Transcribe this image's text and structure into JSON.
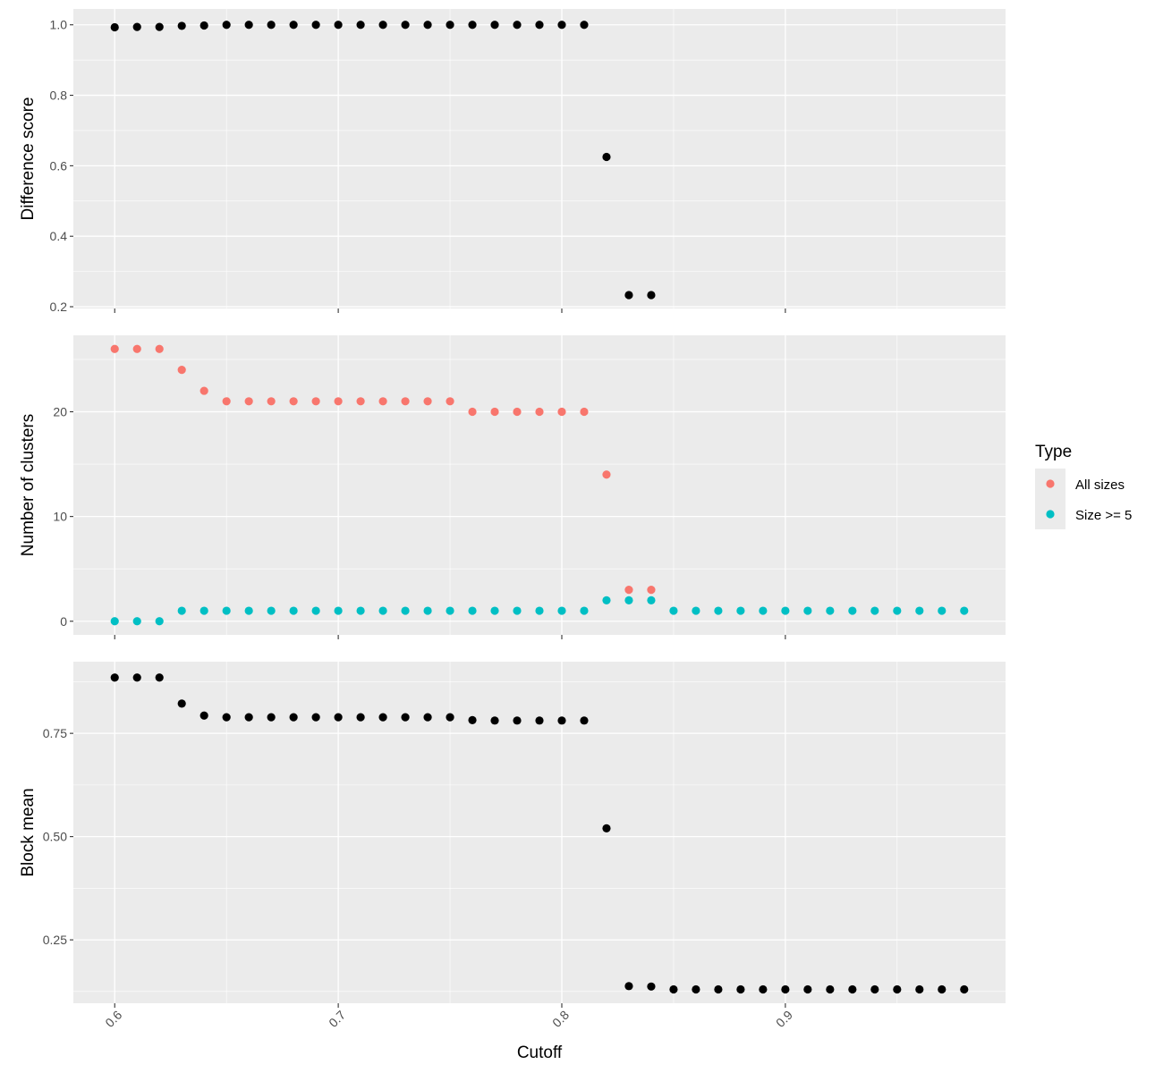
{
  "chart_data": {
    "type": "scatter",
    "xlabel": "Cutoff",
    "x_ticks": [
      "0.6",
      "0.7",
      "0.8",
      "0.9"
    ],
    "xlim": [
      0.5815,
      0.9985
    ],
    "colors": {
      "panel_bg": "#ebebeb",
      "grid": "#ffffff",
      "all_sizes": "#f8766d",
      "size_ge_5": "#00bfc4",
      "single": "#000000"
    },
    "legend": {
      "title": "Type",
      "position": "right",
      "entries": [
        {
          "label": "All sizes",
          "color": "#f8766d"
        },
        {
          "label": "Size >= 5",
          "color": "#00bfc4"
        }
      ]
    },
    "panels": [
      {
        "ylabel": "Difference score",
        "ylim": [
          0.195,
          1.045
        ],
        "y_ticks": [
          "0.2",
          "0.4",
          "0.6",
          "0.8",
          "1.0"
        ],
        "series": [
          {
            "color": "#000000",
            "x": [
              0.6,
              0.61,
              0.62,
              0.63,
              0.64,
              0.65,
              0.66,
              0.67,
              0.68,
              0.69,
              0.7,
              0.71,
              0.72,
              0.73,
              0.74,
              0.75,
              0.76,
              0.77,
              0.78,
              0.79,
              0.8,
              0.81,
              0.82,
              0.83,
              0.84
            ],
            "y": [
              0.993,
              0.994,
              0.994,
              0.997,
              0.998,
              1.0,
              1.0,
              1.0,
              1.0,
              1.0,
              1.0,
              1.0,
              1.0,
              1.0,
              1.0,
              1.0,
              1.0,
              1.0,
              1.0,
              1.0,
              1.0,
              1.0,
              0.625,
              0.233,
              0.233
            ]
          }
        ]
      },
      {
        "ylabel": "Number of clusters",
        "ylim": [
          -1.3,
          27.3
        ],
        "y_ticks": [
          "0",
          "10",
          "20"
        ],
        "series": [
          {
            "name": "All sizes",
            "color": "#f8766d",
            "x": [
              0.6,
              0.61,
              0.62,
              0.63,
              0.64,
              0.65,
              0.66,
              0.67,
              0.68,
              0.69,
              0.7,
              0.71,
              0.72,
              0.73,
              0.74,
              0.75,
              0.76,
              0.77,
              0.78,
              0.79,
              0.8,
              0.81,
              0.82,
              0.83,
              0.84
            ],
            "y": [
              26,
              26,
              26,
              24,
              22,
              21,
              21,
              21,
              21,
              21,
              21,
              21,
              21,
              21,
              21,
              21,
              20,
              20,
              20,
              20,
              20,
              20,
              14,
              3,
              3
            ]
          },
          {
            "name": "Size >= 5",
            "color": "#00bfc4",
            "x": [
              0.6,
              0.61,
              0.62,
              0.63,
              0.64,
              0.65,
              0.66,
              0.67,
              0.68,
              0.69,
              0.7,
              0.71,
              0.72,
              0.73,
              0.74,
              0.75,
              0.76,
              0.77,
              0.78,
              0.79,
              0.8,
              0.81,
              0.82,
              0.83,
              0.84,
              0.85,
              0.86,
              0.87,
              0.88,
              0.89,
              0.9,
              0.91,
              0.92,
              0.93,
              0.94,
              0.95,
              0.96,
              0.97,
              0.98
            ],
            "y": [
              0,
              0,
              0,
              1,
              1,
              1,
              1,
              1,
              1,
              1,
              1,
              1,
              1,
              1,
              1,
              1,
              1,
              1,
              1,
              1,
              1,
              1,
              2,
              2,
              2,
              1,
              1,
              1,
              1,
              1,
              1,
              1,
              1,
              1,
              1,
              1,
              1,
              1,
              1
            ]
          }
        ]
      },
      {
        "ylabel": "Block mean",
        "ylim": [
          0.0965,
          0.9235
        ],
        "y_ticks": [
          "0.25",
          "0.50",
          "0.75"
        ],
        "series": [
          {
            "color": "#000000",
            "x": [
              0.6,
              0.61,
              0.62,
              0.63,
              0.64,
              0.65,
              0.66,
              0.67,
              0.68,
              0.69,
              0.7,
              0.71,
              0.72,
              0.73,
              0.74,
              0.75,
              0.76,
              0.77,
              0.78,
              0.79,
              0.8,
              0.81,
              0.82,
              0.83,
              0.84,
              0.85,
              0.86,
              0.87,
              0.88,
              0.89,
              0.9,
              0.91,
              0.92,
              0.93,
              0.94,
              0.95,
              0.96,
              0.97,
              0.98
            ],
            "y": [
              0.885,
              0.885,
              0.885,
              0.822,
              0.793,
              0.789,
              0.789,
              0.789,
              0.789,
              0.789,
              0.789,
              0.789,
              0.789,
              0.789,
              0.789,
              0.789,
              0.782,
              0.781,
              0.781,
              0.781,
              0.781,
              0.781,
              0.52,
              0.138,
              0.137,
              0.13,
              0.13,
              0.13,
              0.13,
              0.13,
              0.13,
              0.13,
              0.13,
              0.13,
              0.13,
              0.13,
              0.13,
              0.13,
              0.13
            ]
          }
        ]
      }
    ]
  }
}
